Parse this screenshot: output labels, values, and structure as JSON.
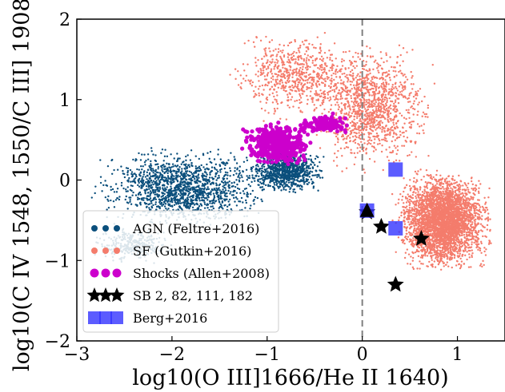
{
  "chart_data": {
    "type": "scatter",
    "xlabel": "log10(O III]1666/He II 1640)",
    "ylabel": "log10(C IV 1548, 1550/C III] 1908)",
    "xlim": [
      -3,
      1.5
    ],
    "ylim": [
      -2,
      2
    ],
    "xticks": [
      -3,
      -2,
      -1,
      0,
      1
    ],
    "yticks": [
      -2,
      -1,
      0,
      1,
      2
    ],
    "xtick_labels": [
      "−3",
      "−2",
      "−1",
      "0",
      "1"
    ],
    "ytick_labels": [
      "−2",
      "−1",
      "0",
      "1",
      "2"
    ],
    "grid": false,
    "legend_position": "lower-left",
    "reference_line": {
      "x": 0,
      "style": "dashed",
      "color": "#808080"
    },
    "colors": {
      "agn": "#0b4f7c",
      "sf": "#f47c6c",
      "shocks": "#cc00cc",
      "sb": "#000000",
      "berg": "#3333ff"
    },
    "series": [
      {
        "name": "AGN (Feltre+2016)",
        "marker": "dot",
        "color": "#0b4f7c",
        "regions": [
          {
            "center": [
              -1.9,
              -0.1
            ],
            "spread": [
              1.0,
              0.55
            ],
            "count": 1500
          },
          {
            "center": [
              -0.8,
              0.1
            ],
            "spread": [
              0.45,
              0.3
            ],
            "count": 900
          },
          {
            "center": [
              -2.4,
              -0.8
            ],
            "spread": [
              0.5,
              0.25
            ],
            "count": 300
          }
        ]
      },
      {
        "name": "SF (Gutkin+2016)",
        "marker": "dot",
        "color": "#f47c6c",
        "regions": [
          {
            "center": [
              0.85,
              -0.5
            ],
            "spread": [
              0.55,
              0.7
            ],
            "count": 3500
          },
          {
            "center": [
              0.1,
              0.9
            ],
            "spread": [
              0.7,
              0.9
            ],
            "count": 1200
          },
          {
            "center": [
              -0.7,
              1.3
            ],
            "spread": [
              0.8,
              0.6
            ],
            "count": 700
          }
        ]
      },
      {
        "name": "Shocks (Allen+2008)",
        "marker": "hexagon",
        "color": "#cc00cc",
        "regions": [
          {
            "center": [
              -0.9,
              0.45
            ],
            "spread": [
              0.4,
              0.3
            ],
            "count": 450
          },
          {
            "center": [
              -0.4,
              0.7
            ],
            "spread": [
              0.35,
              0.15
            ],
            "count": 120
          }
        ]
      },
      {
        "name": "SB 2, 82, 111, 182",
        "marker": "star",
        "color": "#000000",
        "points": [
          [
            0.2,
            -0.58
          ],
          [
            0.62,
            -0.73
          ],
          [
            0.35,
            -1.3
          ],
          [
            0.05,
            -0.4
          ]
        ]
      },
      {
        "name": "Berg+2016",
        "marker": "square",
        "color": "#3333ff",
        "points": [
          [
            0.35,
            0.13
          ],
          [
            0.35,
            -0.6
          ],
          [
            0.05,
            -0.38
          ]
        ]
      }
    ],
    "highlight_triangle": {
      "x": 0.05,
      "y": -0.38
    }
  }
}
